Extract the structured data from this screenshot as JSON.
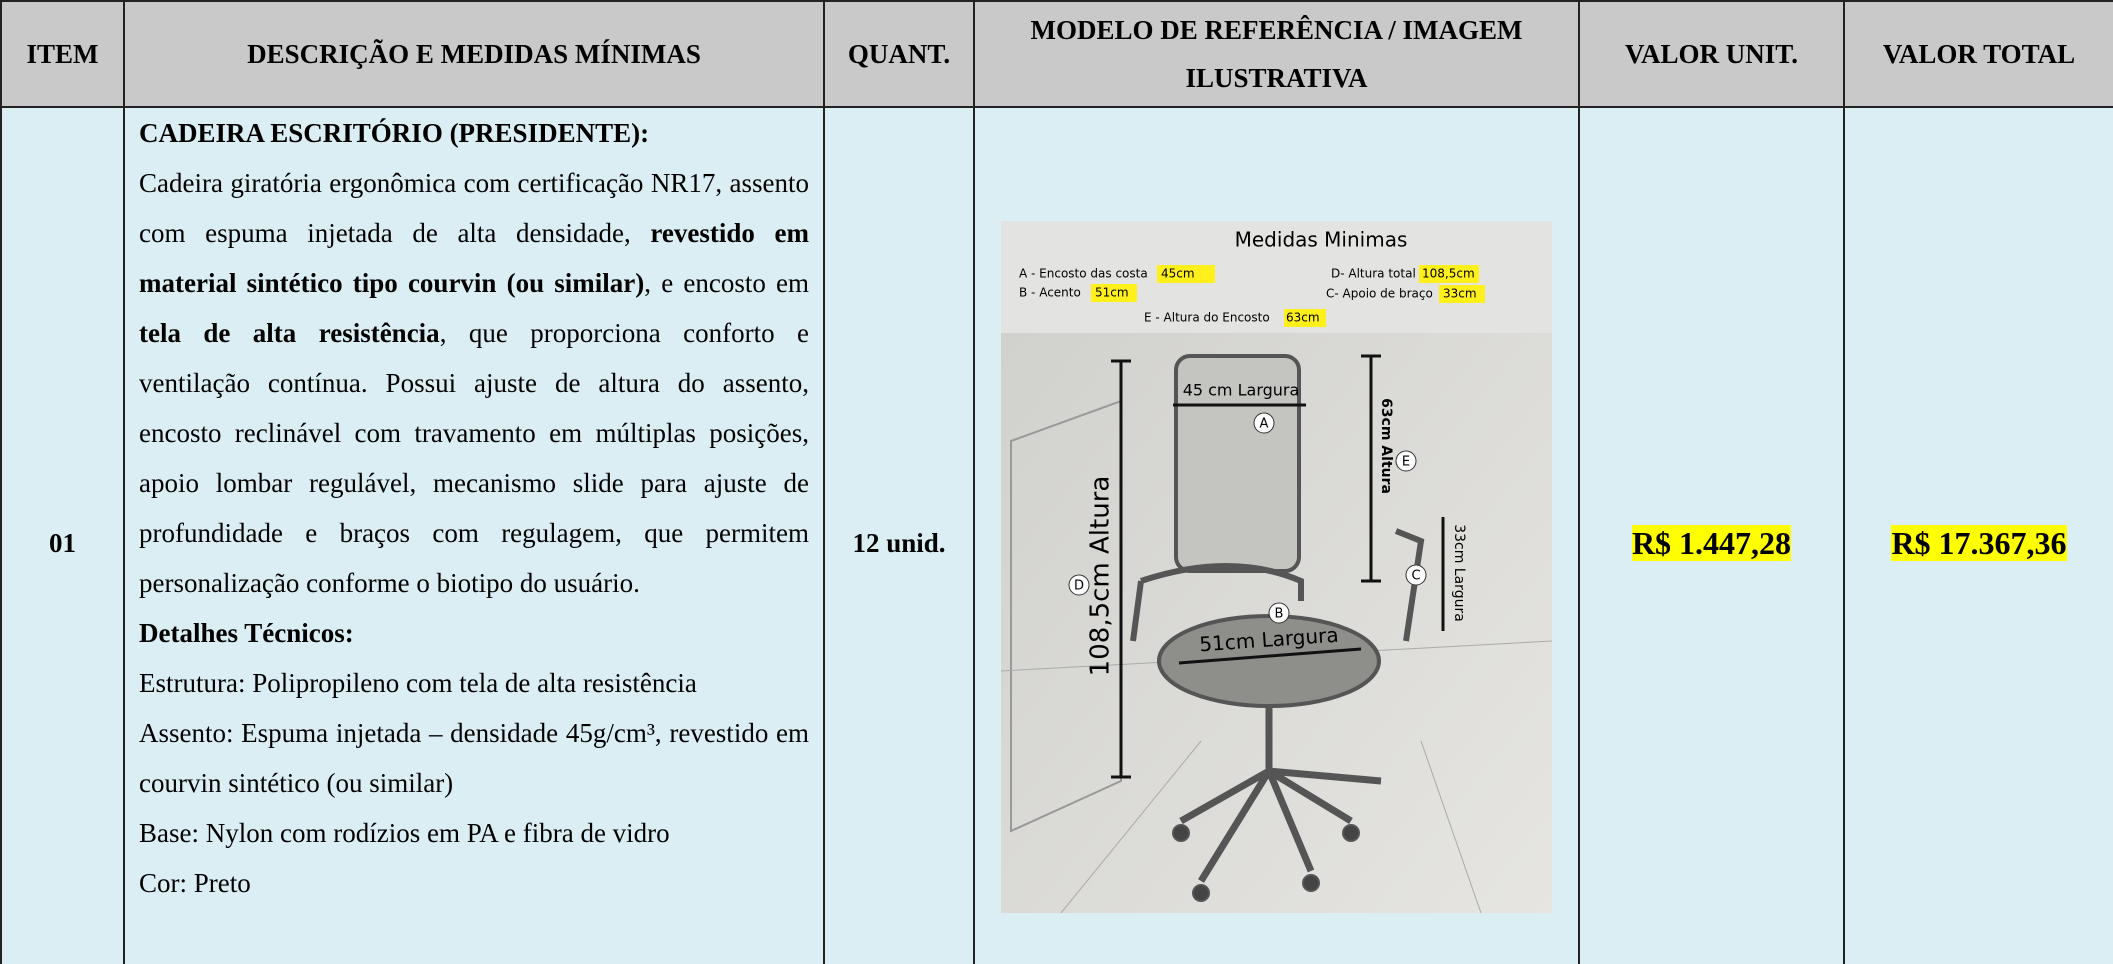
{
  "table": {
    "headers": [
      "ITEM",
      "DESCRIÇÃO E MEDIDAS MÍNIMAS",
      "QUANT.",
      "MODELO DE REFERÊNCIA / IMAGEM ILUSTRATIVA",
      "VALOR UNIT.",
      "VALOR TOTAL"
    ],
    "rows": [
      {
        "item": "01",
        "description": {
          "title": "CADEIRA ESCRITÓRIO (PRESIDENTE):",
          "paragraph": [
            {
              "text": "Cadeira giratória ergonômica com certificação NR17, assento com espuma injetada de alta densidade, ",
              "bold": false
            },
            {
              "text": "revestido em material sintético tipo courvin (ou similar)",
              "bold": true
            },
            {
              "text": ", e encosto em ",
              "bold": false
            },
            {
              "text": "tela de alta resistência",
              "bold": true
            },
            {
              "text": ", que proporciona conforto e ventilação contínua. Possui ajuste de altura do assento, encosto reclinável com travamento em múltiplas posições, apoio lombar regulável, mecanismo slide para ajuste de profundidade e braços com regulagem, que permitem personalização conforme o biotipo do usuário.",
              "bold": false
            }
          ],
          "details_title": "Detalhes Técnicos:",
          "details": [
            "Estrutura: Polipropileno com tela de alta resistência",
            "Assento: Espuma injetada – densidade 45g/cm³, revestido em courvin sintético (ou similar)",
            "Base: Nylon com rodízios em PA e fibra de vidro",
            "Cor: Preto"
          ]
        },
        "quantity": "12 unid.",
        "image": {
          "title": "Medidas Minimas",
          "legend": [
            {
              "label": "A - Encosto das costa",
              "value": "45cm"
            },
            {
              "label": "D- Altura total",
              "value": "108,5cm"
            },
            {
              "label": "B - Acento",
              "value": "51cm"
            },
            {
              "label": "C- Apoio de braço",
              "value": "33cm"
            },
            {
              "label": "E - Altura do Encosto",
              "value": "63cm"
            }
          ],
          "annotations": [
            "45 cm Largura",
            "63cm Altura",
            "108,5cm Altura",
            "33cm Largura",
            "51cm Largura"
          ],
          "markers": [
            "A",
            "B",
            "C",
            "D",
            "E"
          ]
        },
        "unit_value": "R$ 1.447,28",
        "total_value": "R$ 17.367,36"
      }
    ]
  }
}
